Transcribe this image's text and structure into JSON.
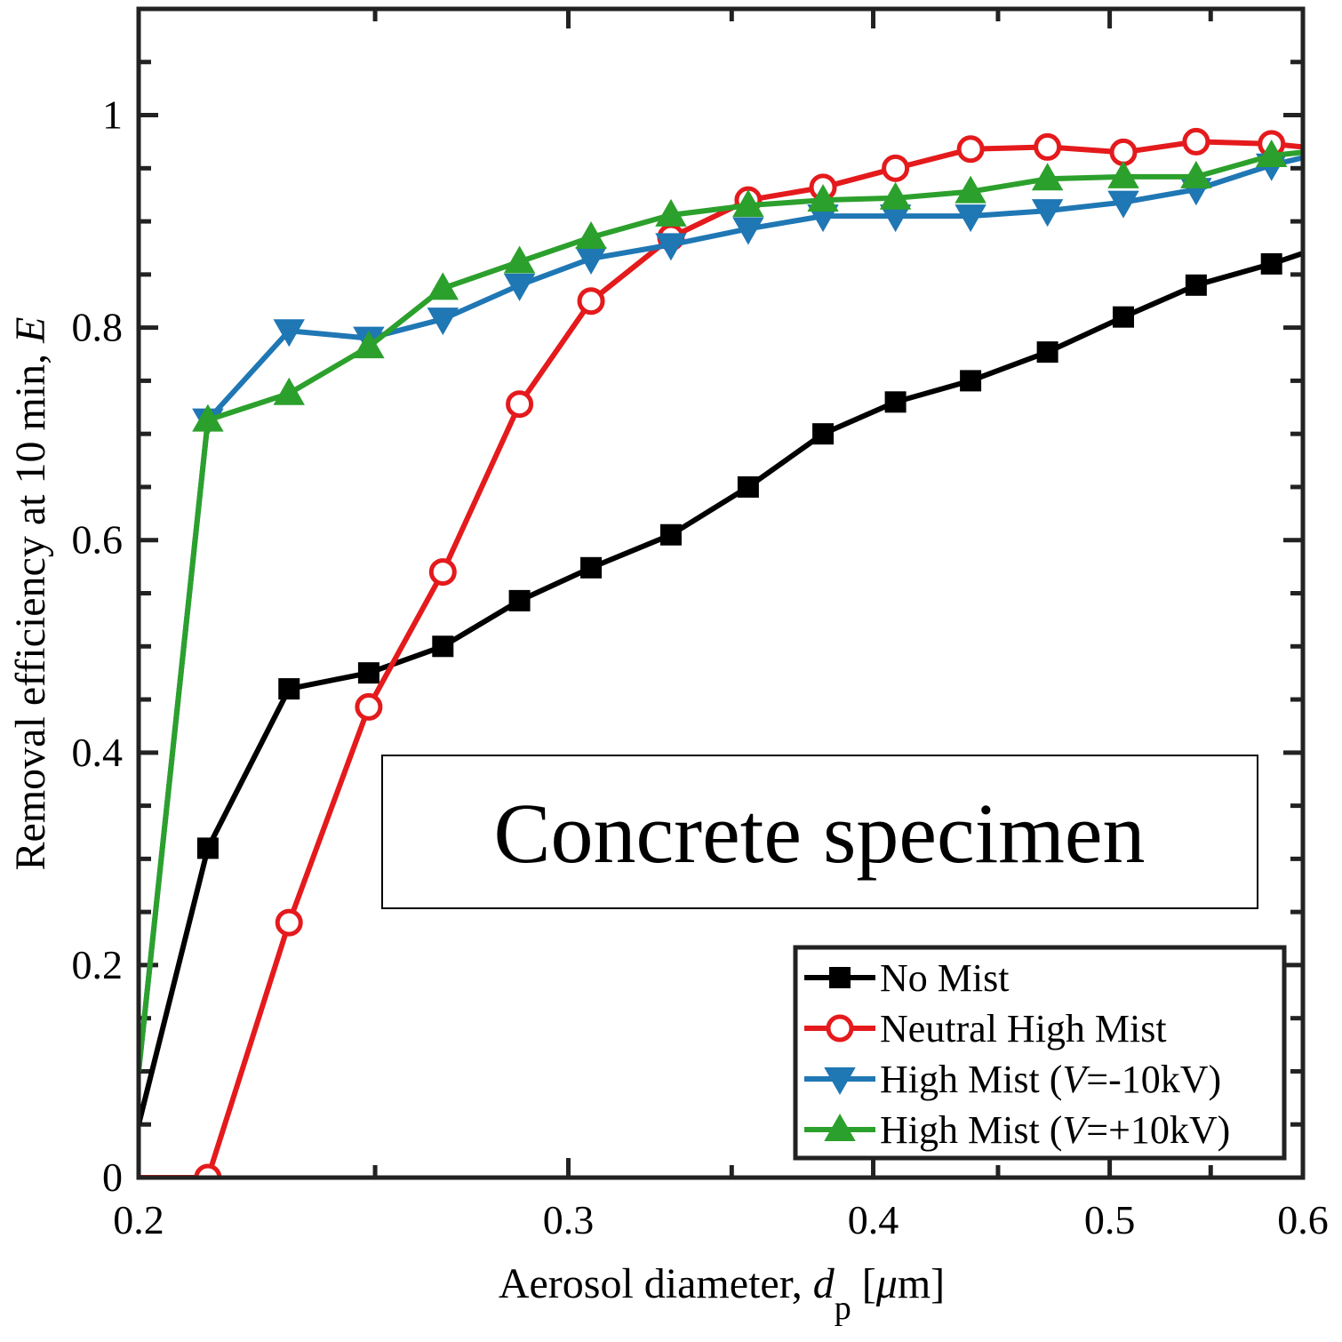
{
  "chart_data": {
    "type": "line",
    "xscale": "log",
    "xlim": [
      0.2,
      0.6
    ],
    "ylim": [
      0,
      1.1
    ],
    "xticks": [
      0.2,
      0.3,
      0.4,
      0.5,
      0.6
    ],
    "xtick_labels": [
      "0.2",
      "0.3",
      "0.4",
      "0.5",
      "0.6"
    ],
    "yticks": [
      0,
      0.2,
      0.4,
      0.6,
      0.8,
      1
    ],
    "ytick_labels": [
      "0",
      "0.2",
      "0.4",
      "0.6",
      "0.8",
      "1"
    ],
    "xlabel_prefix": "Aerosol diameter, ",
    "xlabel_var": "d",
    "xlabel_sub": "p",
    "xlabel_suffix": " [",
    "xlabel_mu": "μ",
    "xlabel_unit": "m]",
    "ylabel_prefix": "Removal efficiency at 10 min, ",
    "ylabel_var": "E",
    "annotation": "Concrete specimen",
    "legend_position": "bottom-right",
    "x": [
      0.2,
      0.2135,
      0.2305,
      0.2485,
      0.2665,
      0.2865,
      0.3065,
      0.3305,
      0.3555,
      0.3815,
      0.4085,
      0.4385,
      0.4715,
      0.5065,
      0.5425,
      0.5825,
      0.6
    ],
    "series": [
      {
        "name": "No Mist",
        "color": "#000000",
        "marker": "square",
        "values": [
          0.05,
          0.31,
          0.46,
          0.475,
          0.5,
          0.543,
          0.574,
          0.605,
          0.65,
          0.7,
          0.73,
          0.75,
          0.777,
          0.81,
          0.84,
          0.86,
          0.87
        ]
      },
      {
        "name": "Neutral High Mist",
        "color": "#e41a1c",
        "marker": "circle",
        "values": [
          0.0,
          0.0,
          0.24,
          0.443,
          0.57,
          0.728,
          0.825,
          0.885,
          0.92,
          0.932,
          0.95,
          0.968,
          0.97,
          0.965,
          0.975,
          0.973,
          0.97
        ]
      },
      {
        "name": "High Mist (",
        "name_var": "V",
        "name_suffix": "=-10kV)",
        "color": "#1f77b4",
        "marker": "triangle-down",
        "values": [
          0.1,
          0.713,
          0.797,
          0.79,
          0.808,
          0.84,
          0.865,
          0.878,
          0.893,
          0.905,
          0.905,
          0.905,
          0.91,
          0.918,
          0.93,
          0.953,
          0.96
        ]
      },
      {
        "name": "High Mist (",
        "name_var": "V",
        "name_suffix": "=+10kV)",
        "color": "#2ca02c",
        "marker": "triangle-up",
        "values": [
          0.1,
          0.713,
          0.738,
          0.782,
          0.837,
          0.862,
          0.885,
          0.906,
          0.915,
          0.92,
          0.922,
          0.928,
          0.94,
          0.942,
          0.942,
          0.962,
          0.965
        ]
      }
    ]
  }
}
